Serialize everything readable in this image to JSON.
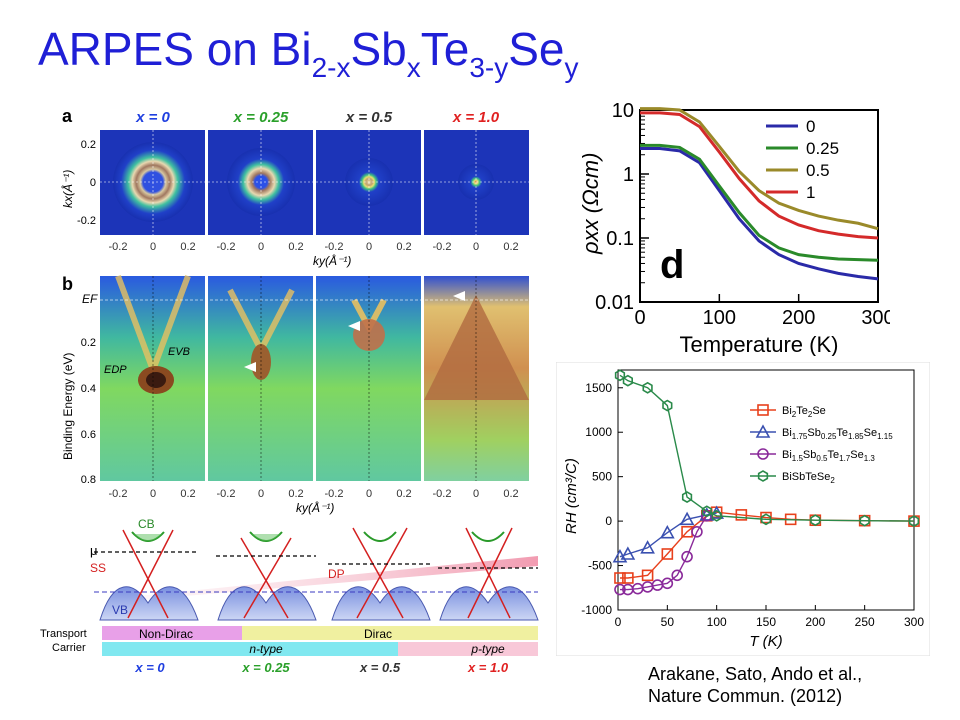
{
  "slide": {
    "title_parts": [
      "ARPES on Bi",
      "2-x",
      "Sb",
      "x",
      "Te",
      "3-y",
      "Se",
      "y"
    ],
    "citation_line1": "Arakane, Sato, Ando et al.,",
    "citation_line2": "Nature Commun. (2012)"
  },
  "arpes": {
    "panel_a": "a",
    "panel_b": "b",
    "x_values": [
      "x = 0",
      "x = 0.25",
      "x = 0.5",
      "x = 1.0"
    ],
    "x_colors": [
      "#1f3fe0",
      "#2aa02a",
      "#333333",
      "#e02020"
    ],
    "kx_label": "kx(Å⁻¹)",
    "ky_label": "ky(Å⁻¹)",
    "ky_label_b": "ky",
    "binding_label": "Binding Energy (eV)",
    "ef_label": "EF",
    "edp_label": "EDP",
    "evb_label": "EVB",
    "a_yticks": [
      "0.2",
      "0",
      "-0.2"
    ],
    "b_yticks": [
      "0.2",
      "0.4",
      "0.6",
      "0.8"
    ],
    "kticks": [
      "-0.2",
      "0",
      "0.2"
    ]
  },
  "schematic": {
    "cb": "CB",
    "mu": "μ",
    "ss": "SS",
    "dp": "DP",
    "vb": "VB",
    "transport_label": "Transport",
    "carrier_label": "Carrier",
    "nondirac": "Non-Dirac",
    "dirac": "Dirac",
    "ntype": "n-type",
    "ptype": "p-type"
  },
  "chart_data": [
    {
      "type": "line",
      "panel": "d",
      "xlabel": "Temperature (K)",
      "ylabel": "ρxx (Ωcm)",
      "yscale": "log",
      "xlim": [
        0,
        300
      ],
      "ylim": [
        0.01,
        10
      ],
      "xticks": [
        "0",
        "100",
        "200",
        "300"
      ],
      "yticks": [
        "0.01",
        "0.1",
        "1",
        "10"
      ],
      "legend_position": "top-right",
      "x": [
        0,
        25,
        50,
        75,
        100,
        125,
        150,
        175,
        200,
        225,
        250,
        275,
        300
      ],
      "series": [
        {
          "name": "0",
          "color": "#2a2aa8",
          "values": [
            2.5,
            2.5,
            2.3,
            1.5,
            0.55,
            0.2,
            0.09,
            0.055,
            0.04,
            0.033,
            0.028,
            0.025,
            0.023
          ]
        },
        {
          "name": "0.25",
          "color": "#2a8a2a",
          "values": [
            2.8,
            2.8,
            2.6,
            1.7,
            0.65,
            0.25,
            0.11,
            0.07,
            0.055,
            0.05,
            0.047,
            0.046,
            0.045
          ]
        },
        {
          "name": "0.5",
          "color": "#9a8a2a",
          "values": [
            10.5,
            10.5,
            10,
            6.5,
            2.7,
            1.1,
            0.55,
            0.35,
            0.27,
            0.22,
            0.19,
            0.17,
            0.14
          ]
        },
        {
          "name": "1",
          "color": "#d42a2a",
          "values": [
            9,
            9,
            8.5,
            5.5,
            2.2,
            0.85,
            0.38,
            0.22,
            0.16,
            0.13,
            0.115,
            0.105,
            0.1
          ]
        }
      ]
    },
    {
      "type": "line",
      "xlabel": "T (K)",
      "ylabel": "RH (cm³/C)",
      "xlim": [
        0,
        300
      ],
      "ylim": [
        -1000,
        1700
      ],
      "xticks": [
        "0",
        "50",
        "100",
        "150",
        "200",
        "250",
        "300"
      ],
      "yticks": [
        "1500",
        "1000",
        "500",
        "0",
        "-500",
        "-1000"
      ],
      "legend_position": "top-right",
      "series": [
        {
          "name": "Bi2Te2Se",
          "legend_parts": [
            "Bi",
            "2",
            "Te",
            "2",
            "Se"
          ],
          "color": "#e8401c",
          "marker": "square",
          "x": [
            2,
            10,
            30,
            50,
            70,
            90,
            100,
            125,
            150,
            175,
            200,
            250,
            300
          ],
          "values": [
            -640,
            -640,
            -610,
            -370,
            -120,
            60,
            100,
            70,
            40,
            20,
            10,
            5,
            0
          ]
        },
        {
          "name": "Bi1.75Sb0.25Te1.85Se1.15",
          "legend_parts": [
            "Bi",
            "1.75",
            "Sb",
            "0.25",
            "Te",
            "1.85",
            "Se",
            "1.15"
          ],
          "color": "#3a50b0",
          "marker": "triangle",
          "x": [
            2,
            10,
            30,
            50,
            70,
            90,
            100
          ],
          "values": [
            -400,
            -370,
            -300,
            -130,
            20,
            70,
            90
          ]
        },
        {
          "name": "Bi1.5Sb0.5Te1.7Se1.3",
          "legend_parts": [
            "Bi",
            "1.5",
            "Sb",
            "0.5",
            "Te",
            "1.7",
            "Se",
            "1.3"
          ],
          "color": "#8a2a9a",
          "marker": "circle",
          "x": [
            2,
            10,
            20,
            30,
            40,
            50,
            60,
            70,
            80,
            90
          ],
          "values": [
            -770,
            -770,
            -760,
            -740,
            -720,
            -700,
            -610,
            -400,
            -120,
            60
          ]
        },
        {
          "name": "BiSbTeSe2",
          "legend_parts": [
            "BiSbTeSe",
            "2"
          ],
          "color": "#2a8a4a",
          "marker": "hexagon",
          "x": [
            2,
            10,
            30,
            50,
            70,
            90,
            100,
            150,
            200,
            250,
            300
          ],
          "values": [
            1640,
            1580,
            1500,
            1300,
            270,
            110,
            60,
            20,
            10,
            5,
            0
          ]
        }
      ]
    }
  ]
}
